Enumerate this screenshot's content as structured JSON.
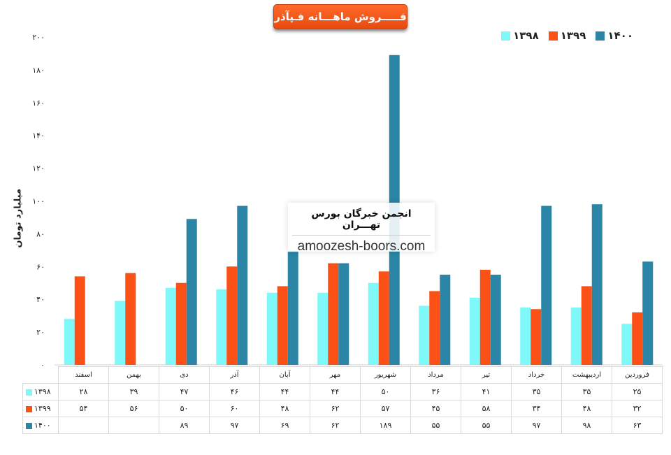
{
  "title": "فـــــروش ماهـــانه فـپآذر",
  "watermark": {
    "title": "انجمن خبرگان بورس تهـــران",
    "url": "amoozesh-boors.com"
  },
  "chart_data": {
    "type": "bar",
    "ylabel": "میلیارد تومان",
    "ylim": [
      0,
      200
    ],
    "yticks": [
      "۰",
      "۲۰",
      "۴۰",
      "۶۰",
      "۸۰",
      "۱۰۰",
      "۱۲۰",
      "۱۴۰",
      "۱۶۰",
      "۱۸۰",
      "۲۰۰"
    ],
    "ytick_values": [
      0,
      20,
      40,
      60,
      80,
      100,
      120,
      140,
      160,
      180,
      200
    ],
    "categories": [
      "فروردین",
      "اردیبهشت",
      "خرداد",
      "تیر",
      "مرداد",
      "شهریور",
      "مهر",
      "آبان",
      "آذر",
      "دی",
      "بهمن",
      "اسفند"
    ],
    "legend_position": "top-right",
    "series": [
      {
        "name": "۱۳۹۸",
        "color": "#7ff8fa",
        "values": [
          25,
          35,
          35,
          41,
          36,
          50,
          44,
          44,
          46,
          47,
          39,
          28
        ],
        "labels": [
          "۲۵",
          "۳۵",
          "۳۵",
          "۴۱",
          "۳۶",
          "۵۰",
          "۴۴",
          "۴۴",
          "۴۶",
          "۴۷",
          "۳۹",
          "۲۸"
        ]
      },
      {
        "name": "۱۳۹۹",
        "color": "#fb5016",
        "values": [
          32,
          48,
          34,
          58,
          45,
          57,
          62,
          48,
          60,
          50,
          56,
          54
        ],
        "labels": [
          "۳۲",
          "۴۸",
          "۳۴",
          "۵۸",
          "۴۵",
          "۵۷",
          "۶۲",
          "۴۸",
          "۶۰",
          "۵۰",
          "۵۶",
          "۵۴"
        ]
      },
      {
        "name": "۱۴۰۰",
        "color": "#2a85a6",
        "values": [
          63,
          98,
          97,
          55,
          55,
          189,
          62,
          69,
          97,
          89,
          null,
          null
        ],
        "labels": [
          "۶۳",
          "۹۸",
          "۹۷",
          "۵۵",
          "۵۵",
          "۱۸۹",
          "۶۲",
          "۶۹",
          "۹۷",
          "۸۹",
          "",
          ""
        ]
      }
    ]
  }
}
